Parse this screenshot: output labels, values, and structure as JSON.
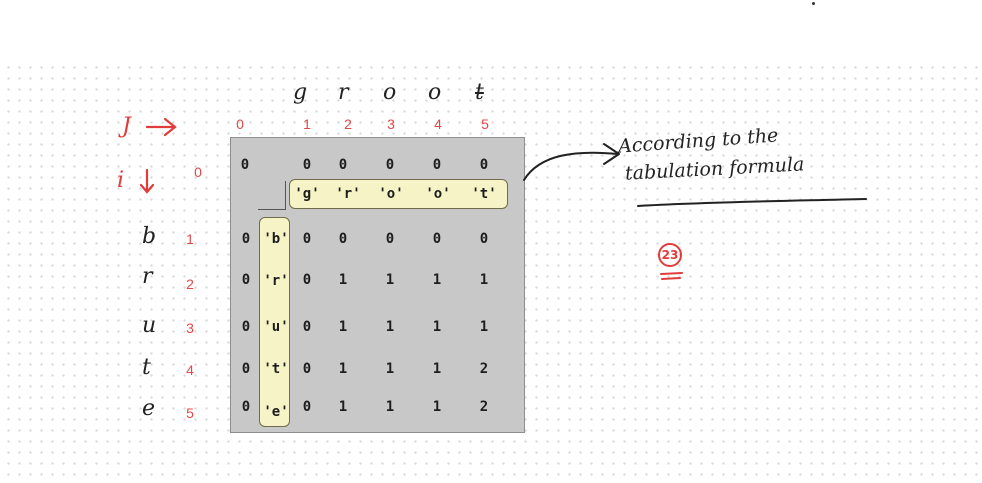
{
  "string_a": [
    "g",
    "r",
    "o",
    "o",
    "t"
  ],
  "string_b": [
    "b",
    "r",
    "u",
    "t",
    "e"
  ],
  "j_label": "J",
  "i_label": "i",
  "col_indices": [
    "0",
    "1",
    "2",
    "3",
    "4",
    "5"
  ],
  "row_indices": [
    "0",
    "1",
    "2",
    "3",
    "4",
    "5"
  ],
  "col_chars": [
    "'g'",
    "'r'",
    "'o'",
    "'o'",
    "'t'"
  ],
  "row_chars": [
    "'b'",
    "'r'",
    "'u'",
    "'t'",
    "'e'"
  ],
  "table": [
    [
      "0",
      "0",
      "0",
      "0",
      "0",
      "0"
    ],
    [
      "0",
      "0",
      "0",
      "0",
      "0",
      "0"
    ],
    [
      "0",
      "0",
      "1",
      "1",
      "1",
      "1"
    ],
    [
      "0",
      "0",
      "1",
      "1",
      "1",
      "1"
    ],
    [
      "0",
      "0",
      "1",
      "1",
      "1",
      "2"
    ],
    [
      "0",
      "0",
      "1",
      "1",
      "1",
      "2"
    ]
  ],
  "note_line1": "According to the",
  "note_line2": "tabulation formula",
  "circled_number": "23"
}
